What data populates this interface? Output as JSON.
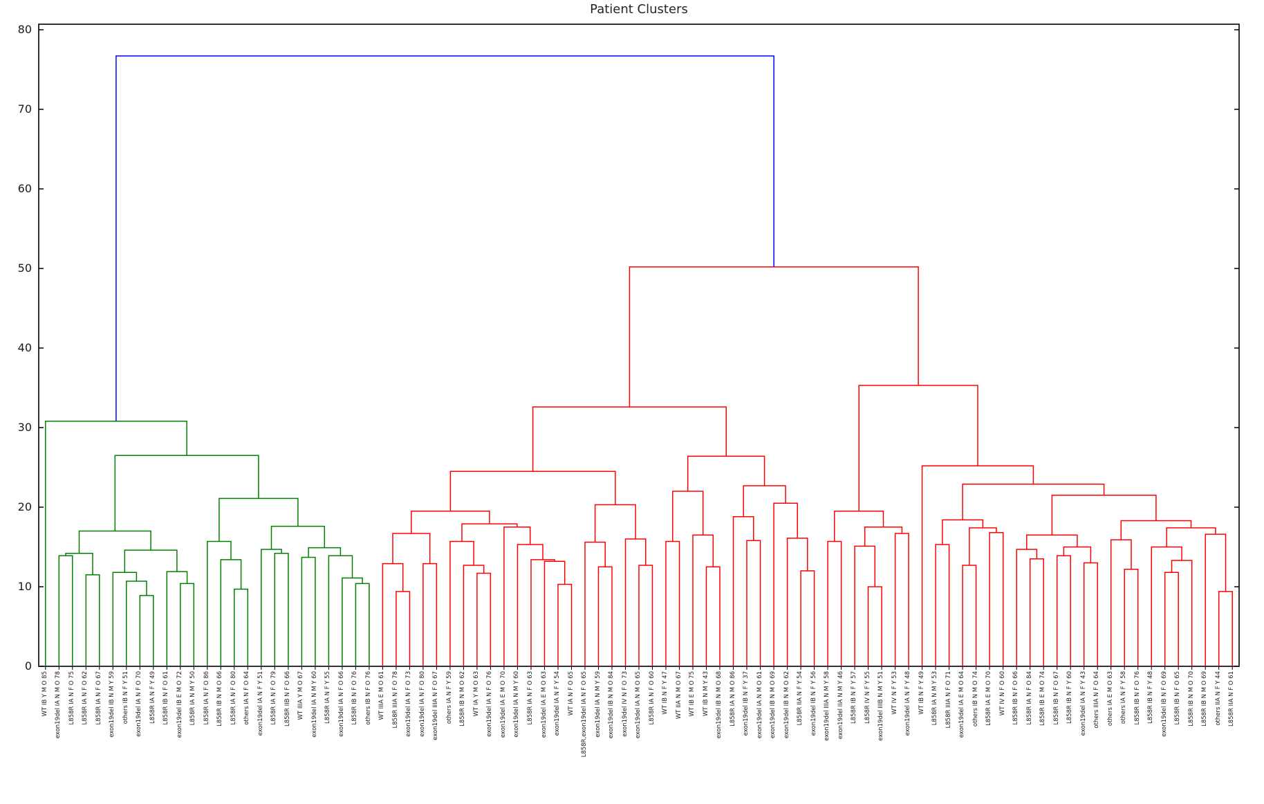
{
  "title": "Patient Clusters",
  "chart_data": {
    "type": "dendrogram",
    "title": "Patient Clusters",
    "ylabel": "",
    "xlabel": "",
    "yticks": [
      0,
      10,
      20,
      30,
      40,
      50,
      60,
      70,
      80
    ],
    "ylim": [
      0,
      80.7
    ],
    "grid": false,
    "legend_position": "none",
    "colors": {
      "left_cluster": "#008000",
      "right_cluster": "#ff0000",
      "root_link": "#0000ff",
      "axis": "#000000",
      "tick_text": "#1a1a1a"
    },
    "leaves": [
      "WT IB Y M O 85",
      "exon19del IA N M O 78",
      "L858R IA N F O 75",
      "L858R IA N F O 62",
      "L858R IA N F O 67",
      "exon19del IB N M Y 59",
      "others IB N F Y 51",
      "exon19del IA N F O 70",
      "L858R IA N F Y 49",
      "L858R IB N F O 61",
      "exon19del IB E M O 72",
      "L858R IA N M Y 50",
      "L858R IA N F O 86",
      "L858R IB N M O 66",
      "L858R IA N F O 80",
      "others IA N F O 64",
      "exon19del IA N F Y 51",
      "L858R IA N F O 79",
      "L858R IIB N F O 66",
      "WT IIIA Y M O 67",
      "exon19del IA N M Y 60",
      "L858R IA N F Y 55",
      "exon19del IA N F O 66",
      "L858R IB N F O 76",
      "others IB N F O 76",
      "WT IIIA E M O 61",
      "L858R IIIA N F O 78",
      "exon19del IA N F O 73",
      "exon19del IA N F O 80",
      "exon19del IIIA N F O 67",
      "others IA N F Y 59",
      "L858R IB N M O 62",
      "WT IA Y M O 63",
      "exon19del IA N F O 76",
      "exon19del IA E M O 70",
      "exon19del IA N M Y 60",
      "L858R IA N F O 63",
      "exon19del IA E M O 63",
      "exon19del IA N F Y 54",
      "WT IA N F O 65",
      "L858R,exon19del IA N F O 65",
      "exon19del IA N M Y 59",
      "exon19del IB N M O 84",
      "exon19del IV N F O 73",
      "exon19del IA N M O 65",
      "L858R IA N F O 60",
      "WT IB N F Y 47",
      "WT IIA N M O 67",
      "WT IB E M O 75",
      "WT IB N M Y 43",
      "exon19del IB N M O 68",
      "L858R IA N M O 86",
      "exon19del IB N F Y 37",
      "exon19del IA N M O 61",
      "exon19del IB N M O 69",
      "exon19del IB N M O 62",
      "L858R IIA N F Y 54",
      "exon19del IB N F Y 56",
      "exon19del IIIA N M Y 58",
      "exon19del IIA N M Y 46",
      "L858R IB N F Y 57",
      "L858R IV N F Y 55",
      "exon19del IIIB N M Y 51",
      "WT IV N F Y 53",
      "exon19del IA N F Y 48",
      "WT IB N F Y 49",
      "L858R IA N M Y 53",
      "L858R IIIA N F O 71",
      "exon19del IA E M O 64",
      "others IB N M O 74",
      "L858R IA E M O 70",
      "WT IV N F O 60",
      "L858R IB N F O 66",
      "L858R IA N F O 84",
      "L858R IB E M O 74",
      "L858R IB N F O 67",
      "L858R IB N F Y 60",
      "exon19del IA N F Y 43",
      "others IIIA N F O 64",
      "others IA E M O 63",
      "others IA N F Y 58",
      "L858R IB N F O 76",
      "L858R IB N F Y 48",
      "exon19del IB N F O 69",
      "L858R IB N F O 65",
      "L858R IB N M O 70",
      "L858R IB N M O 69",
      "others IIA N F Y 44",
      "L858R IIA N F O 61"
    ],
    "tree": [
      76.7,
      [
        30.8,
        0,
        [
          26.5,
          [
            17.0,
            [
              14.2,
              [
                13.9,
                1,
                2
              ],
              [
                11.5,
                3,
                4
              ]
            ],
            [
              14.6,
              [
                11.8,
                5,
                [
                  10.7,
                  6,
                  [
                    8.9,
                    7,
                    8
                  ]
                ]
              ],
              [
                11.9,
                9,
                [
                  10.4,
                  10,
                  11
                ]
              ]
            ]
          ],
          [
            21.1,
            [
              15.7,
              12,
              [
                13.4,
                13,
                [
                  9.7,
                  14,
                  15
                ]
              ]
            ],
            [
              17.6,
              [
                14.7,
                16,
                [
                  14.2,
                  17,
                  18
                ]
              ],
              [
                14.9,
                [
                  13.7,
                  19,
                  20
                ],
                [
                  13.9,
                  21,
                  [
                    11.1,
                    22,
                    [
                      10.4,
                      23,
                      24
                    ]
                  ]
                ]
              ]
            ]
          ]
        ]
      ],
      [
        50.2,
        [
          32.6,
          [
            24.5,
            [
              19.5,
              [
                16.7,
                [
                  12.9,
                  25,
                  [
                    9.4,
                    26,
                    27
                  ]
                ],
                [
                  12.9,
                  28,
                  29
                ]
              ],
              [
                17.9,
                [
                  15.7,
                  30,
                  [
                    12.7,
                    31,
                    [
                      11.7,
                      32,
                      33
                    ]
                  ]
                ],
                [
                  17.5,
                  34,
                  [
                    15.3,
                    35,
                    [
                      13.4,
                      36,
                      [
                        13.2,
                        37,
                        [
                          10.3,
                          38,
                          39
                        ]
                      ]
                    ]
                  ]
                ]
              ]
            ],
            [
              20.3,
              [
                15.6,
                40,
                [
                  12.5,
                  41,
                  42
                ]
              ],
              [
                16.0,
                43,
                [
                  12.7,
                  44,
                  45
                ]
              ]
            ]
          ],
          [
            26.4,
            [
              22.0,
              [
                15.7,
                46,
                47
              ],
              [
                16.5,
                48,
                [
                  12.5,
                  49,
                  50
                ]
              ]
            ],
            [
              22.7,
              [
                18.8,
                51,
                [
                  15.8,
                  52,
                  53
                ]
              ],
              [
                20.5,
                54,
                [
                  16.1,
                  55,
                  [
                    12.0,
                    56,
                    57
                  ]
                ]
              ]
            ]
          ]
        ],
        [
          35.3,
          [
            19.5,
            [
              15.7,
              58,
              59
            ],
            [
              17.5,
              [
                15.1,
                60,
                [
                  10.0,
                  61,
                  62
                ]
              ],
              [
                16.7,
                63,
                64
              ]
            ]
          ],
          [
            25.2,
            65,
            [
              22.9,
              [
                18.4,
                [
                  15.3,
                  66,
                  67
                ],
                [
                  17.4,
                  [
                    12.7,
                    68,
                    69
                  ],
                  [
                    16.8,
                    70,
                    71
                  ]
                ]
              ],
              [
                21.5,
                [
                  16.5,
                  [
                    14.7,
                    72,
                    [
                      13.5,
                      73,
                      74
                    ]
                  ],
                  [
                    15.0,
                    [
                      13.9,
                      75,
                      76
                    ],
                    [
                      13.0,
                      77,
                      78
                    ]
                  ]
                ],
                [
                  18.3,
                  [
                    15.9,
                    79,
                    [
                      12.2,
                      80,
                      81
                    ]
                  ],
                  [
                    17.4,
                    [
                      15.0,
                      82,
                      [
                        13.3,
                        [
                          11.8,
                          83,
                          84
                        ],
                        85
                      ]
                    ],
                    [
                      16.6,
                      86,
                      [
                        9.4,
                        87,
                        88
                      ]
                    ]
                  ]
                ]
              ]
            ]
          ]
        ]
      ]
    ]
  }
}
